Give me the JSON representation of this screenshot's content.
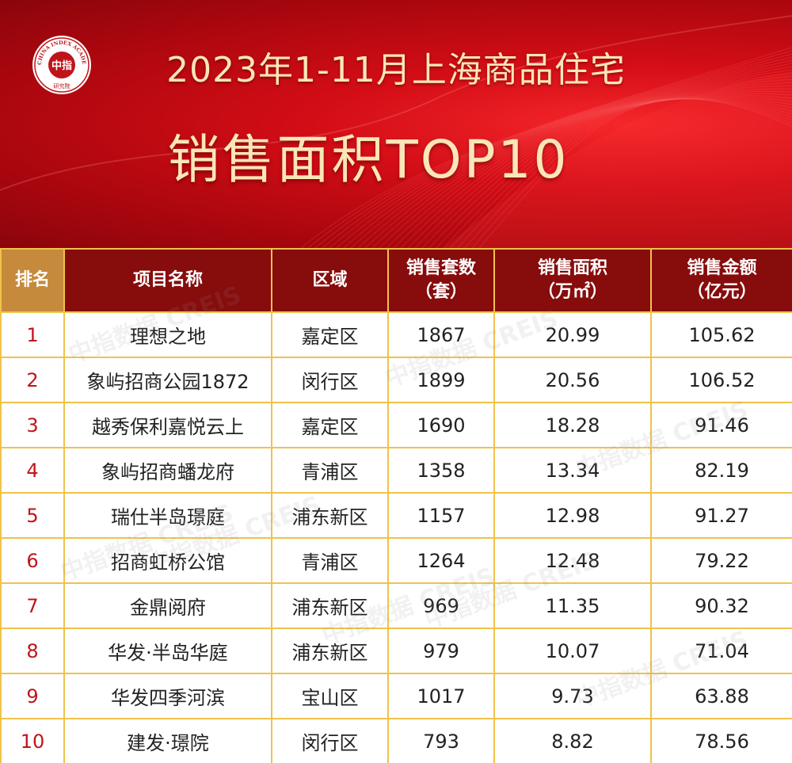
{
  "header": {
    "logo": {
      "center_text": "中指",
      "ring_text": "CHINA INDEX ACADEMY",
      "bottom_text": "研究院"
    },
    "title_line1": "2023年1-11月上海商品住宅",
    "title_line2": "销售面积TOP10"
  },
  "colors": {
    "banner_red": "#d30d16",
    "header_dark_red": "#870c0c",
    "header_first_col": "#c58a3c",
    "title_gold": "#fbe6b8",
    "grid_gold": "#f0c24a",
    "rank_red": "#c0141b"
  },
  "watermark": {
    "text": "中指数据 CREIS"
  },
  "chart_data": {
    "type": "table",
    "columns": [
      {
        "line1": "排名",
        "line2": ""
      },
      {
        "line1": "项目名称",
        "line2": ""
      },
      {
        "line1": "区域",
        "line2": ""
      },
      {
        "line1": "销售套数",
        "line2": "（套）"
      },
      {
        "line1": "销售面积",
        "line2": "（万㎡）"
      },
      {
        "line1": "销售金额",
        "line2": "（亿元）"
      }
    ],
    "rows": [
      [
        "1",
        "理想之地",
        "嘉定区",
        "1867",
        "20.99",
        "105.62"
      ],
      [
        "2",
        "象屿招商公园1872",
        "闵行区",
        "1899",
        "20.56",
        "106.52"
      ],
      [
        "3",
        "越秀保利嘉悦云上",
        "嘉定区",
        "1690",
        "18.28",
        "91.46"
      ],
      [
        "4",
        "象屿招商蟠龙府",
        "青浦区",
        "1358",
        "13.34",
        "82.19"
      ],
      [
        "5",
        "瑞仕半岛璟庭",
        "浦东新区",
        "1157",
        "12.98",
        "91.27"
      ],
      [
        "6",
        "招商虹桥公馆",
        "青浦区",
        "1264",
        "12.48",
        "79.22"
      ],
      [
        "7",
        "金鼎阅府",
        "浦东新区",
        "969",
        "11.35",
        "90.32"
      ],
      [
        "8",
        "华发·半岛华庭",
        "浦东新区",
        "979",
        "10.07",
        "71.04"
      ],
      [
        "9",
        "华发四季河滨",
        "宝山区",
        "1017",
        "9.73",
        "63.88"
      ],
      [
        "10",
        "建发·璟院",
        "闵行区",
        "793",
        "8.82",
        "78.56"
      ]
    ]
  }
}
